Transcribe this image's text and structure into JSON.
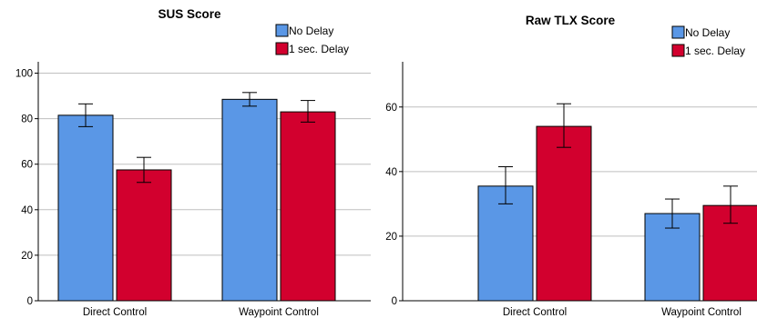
{
  "colors": {
    "no_delay": "#5a97e6",
    "delay": "#d2002e",
    "grid": "#bfbfbf",
    "axis": "#000000"
  },
  "chart_data": [
    {
      "type": "bar",
      "title": "SUS Score",
      "categories": [
        "Direct Control",
        "Waypoint Control"
      ],
      "series": [
        {
          "name": "No Delay",
          "values": [
            81.5,
            88.5
          ],
          "error_low": [
            76.5,
            85.5
          ],
          "error_high": [
            86.5,
            91.5
          ]
        },
        {
          "name": "1 sec. Delay",
          "values": [
            57.5,
            83.0
          ],
          "error_low": [
            52.0,
            78.5
          ],
          "error_high": [
            63.0,
            88.0
          ]
        }
      ],
      "ylim": [
        0,
        105
      ],
      "yticks": [
        0,
        20,
        40,
        60,
        80,
        100
      ],
      "legend_position": "top-right",
      "grid": true
    },
    {
      "type": "bar",
      "title": "Raw TLX Score",
      "categories": [
        "Direct Control",
        "Waypoint Control"
      ],
      "series": [
        {
          "name": "No Delay",
          "values": [
            35.5,
            27.0
          ],
          "error_low": [
            30.0,
            22.5
          ],
          "error_high": [
            41.5,
            31.5
          ]
        },
        {
          "name": "1 sec. Delay",
          "values": [
            54.0,
            29.5
          ],
          "error_low": [
            47.5,
            24.0
          ],
          "error_high": [
            61.0,
            35.5
          ]
        }
      ],
      "ylim": [
        0,
        74
      ],
      "yticks": [
        0,
        20,
        40,
        60
      ],
      "legend_position": "top-right",
      "grid": true
    }
  ]
}
